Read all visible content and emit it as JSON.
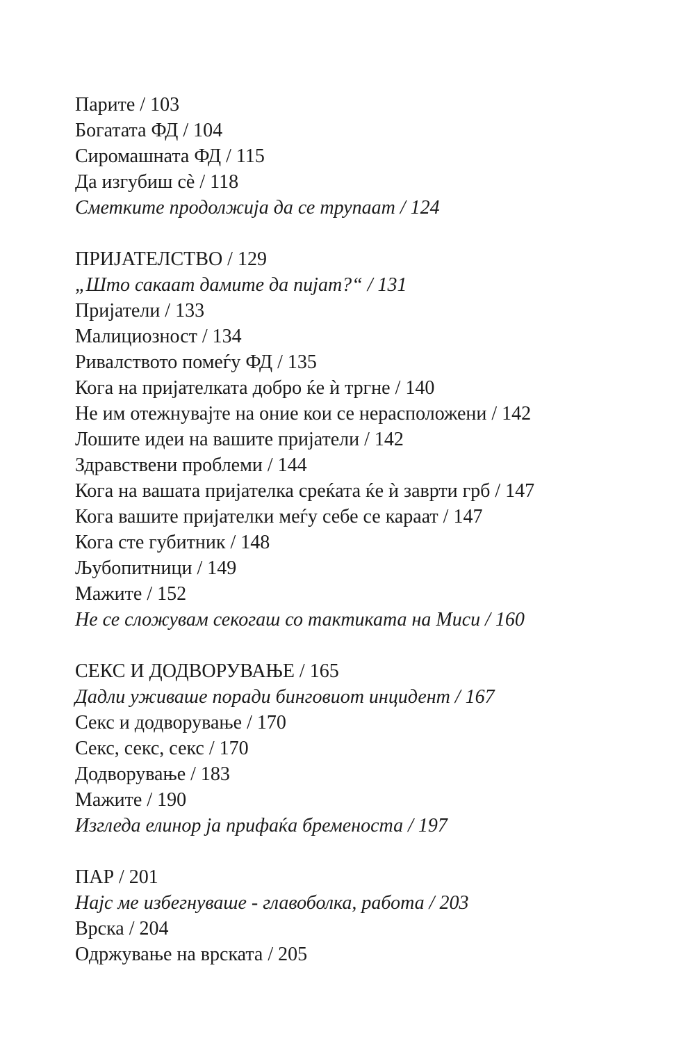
{
  "toc": [
    {
      "entries": [
        {
          "text": "Парите / 103",
          "italic": false
        },
        {
          "text": "Богатата ФД / 104",
          "italic": false
        },
        {
          "text": "Сиромашната ФД / 115",
          "italic": false
        },
        {
          "text": "Да изгубиш сè / 118",
          "italic": false
        },
        {
          "text": "Сметките продолжија да се трупаат / 124",
          "italic": true
        }
      ]
    },
    {
      "entries": [
        {
          "text": "ПРИЈАТЕЛСТВО / 129",
          "italic": false
        },
        {
          "text": "„Што сакаат дамите да пијат?“ / 131",
          "italic": true
        },
        {
          "text": "Пријатели / 133",
          "italic": false
        },
        {
          "text": "Малициозност / 134",
          "italic": false
        },
        {
          "text": "Ривалството помеѓу ФД / 135",
          "italic": false
        },
        {
          "text": "Кога на пријателката добро ќе ѝ тргне / 140",
          "italic": false
        },
        {
          "text": "Не им отежнувајте на оние кои се нерасположени / 142",
          "italic": false
        },
        {
          "text": "Лошите идеи на вашите пријатели / 142",
          "italic": false
        },
        {
          "text": "Здравствени проблеми / 144",
          "italic": false
        },
        {
          "text": "Кога на вашата пријателка среќата ќе ѝ заврти грб / 147",
          "italic": false
        },
        {
          "text": "Кога вашите пријателки меѓу себе се караат / 147",
          "italic": false
        },
        {
          "text": "Кога сте губитник / 148",
          "italic": false
        },
        {
          "text": "Љубопитници / 149",
          "italic": false
        },
        {
          "text": "Мажите / 152",
          "italic": false
        },
        {
          "text": "Не се сложувам секогаш со тактиката на Миси / 160",
          "italic": true
        }
      ]
    },
    {
      "entries": [
        {
          "text": "СЕКС И ДОДВОРУВАЊЕ / 165",
          "italic": false
        },
        {
          "text": "Дадли уживаше поради бинговиот инцидент / 167",
          "italic": true
        },
        {
          "text": "Секс и додворување / 170",
          "italic": false
        },
        {
          "text": "Секс, секс, секс / 170",
          "italic": false
        },
        {
          "text": "Додворување / 183",
          "italic": false
        },
        {
          "text": "Мажите / 190",
          "italic": false
        },
        {
          "text": "Изгледа елинор ја прифаќа бременоста / 197",
          "italic": true
        }
      ]
    },
    {
      "entries": [
        {
          "text": "ПАР / 201",
          "italic": false
        },
        {
          "text": "Најс ме избегнуваше - главоболка, работа / 203",
          "italic": true
        },
        {
          "text": "Врска / 204",
          "italic": false
        },
        {
          "text": "Одржување на врската / 205",
          "italic": false
        }
      ]
    }
  ]
}
